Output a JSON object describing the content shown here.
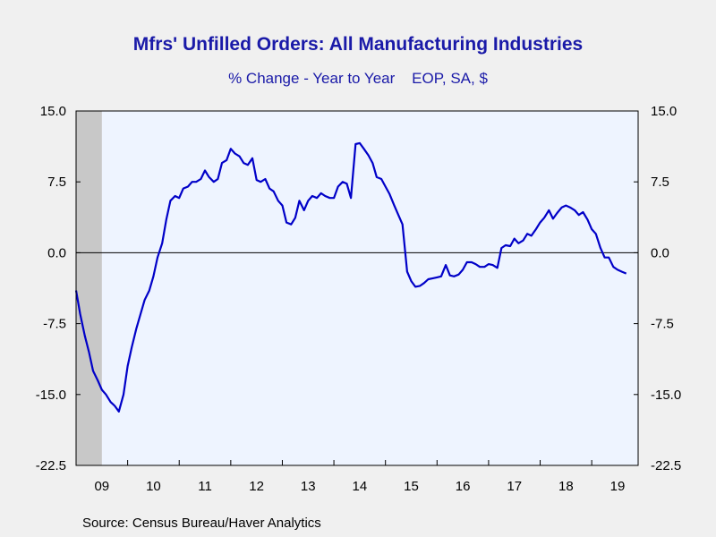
{
  "chart_data": {
    "type": "line",
    "title": "Mfrs' Unfilled Orders: All Manufacturing Industries",
    "subtitle": "% Change - Year to Year    EOP, SA, $",
    "source": "Source:  Census Bureau/Haver Analytics",
    "ylim": [
      -22.5,
      15.0
    ],
    "yticks": [
      "15.0",
      "7.5",
      "0.0",
      "-7.5",
      "-15.0",
      "-22.5"
    ],
    "xlim": [
      2009.0,
      2019.9
    ],
    "xticks": [
      "09",
      "10",
      "11",
      "12",
      "13",
      "14",
      "15",
      "16",
      "17",
      "18",
      "19"
    ],
    "recession_shade": [
      2009.0,
      2009.5
    ],
    "colors": {
      "line": "#0000c8",
      "plot_bg": "#eef4ff",
      "recession": "#c8c8c8",
      "text": "#1a1aa8"
    },
    "series": [
      {
        "x": [
          2009.0,
          2009.08,
          2009.17,
          2009.25,
          2009.33,
          2009.42,
          2009.5,
          2009.58,
          2009.67,
          2009.75,
          2009.83,
          2009.92,
          2010.0,
          2010.08,
          2010.17,
          2010.25,
          2010.33,
          2010.42,
          2010.5,
          2010.58,
          2010.67,
          2010.75,
          2010.83,
          2010.92,
          2011.0,
          2011.08,
          2011.17,
          2011.25,
          2011.33,
          2011.42,
          2011.5,
          2011.58,
          2011.67,
          2011.75,
          2011.83,
          2011.92,
          2012.0,
          2012.08,
          2012.17,
          2012.25,
          2012.33,
          2012.42,
          2012.5,
          2012.58,
          2012.67,
          2012.75,
          2012.83,
          2012.92,
          2013.0,
          2013.08,
          2013.17,
          2013.25,
          2013.33,
          2013.42,
          2013.5,
          2013.58,
          2013.67,
          2013.75,
          2013.83,
          2013.92,
          2014.0,
          2014.08,
          2014.17,
          2014.25,
          2014.33,
          2014.42,
          2014.5,
          2014.58,
          2014.67,
          2014.75,
          2014.83,
          2014.92,
          2015.0,
          2015.08,
          2015.17,
          2015.25,
          2015.33,
          2015.42,
          2015.5,
          2015.58,
          2015.67,
          2015.75,
          2015.83,
          2015.92,
          2016.0,
          2016.08,
          2016.17,
          2016.25,
          2016.33,
          2016.42,
          2016.5,
          2016.58,
          2016.67,
          2016.75,
          2016.83,
          2016.92,
          2017.0,
          2017.08,
          2017.17,
          2017.25,
          2017.33,
          2017.42,
          2017.5,
          2017.58,
          2017.67,
          2017.75,
          2017.83,
          2017.92,
          2018.0,
          2018.08,
          2018.17,
          2018.25,
          2018.33,
          2018.42,
          2018.5,
          2018.58,
          2018.67,
          2018.75,
          2018.83,
          2018.92,
          2019.0,
          2019.08,
          2019.17,
          2019.25,
          2019.33,
          2019.42,
          2019.5,
          2019.58,
          2019.67
        ],
        "values": [
          -4.0,
          -6.5,
          -8.8,
          -10.5,
          -12.5,
          -13.5,
          -14.5,
          -15.0,
          -15.8,
          -16.2,
          -16.8,
          -15.0,
          -12.0,
          -10.0,
          -8.0,
          -6.5,
          -5.0,
          -4.0,
          -2.5,
          -0.5,
          1.0,
          3.5,
          5.5,
          6.0,
          5.8,
          6.8,
          7.0,
          7.5,
          7.5,
          7.8,
          8.7,
          8.0,
          7.5,
          7.8,
          9.5,
          9.8,
          11.0,
          10.5,
          10.2,
          9.5,
          9.3,
          10.0,
          7.7,
          7.5,
          7.8,
          6.8,
          6.5,
          5.5,
          5.0,
          3.2,
          3.0,
          3.7,
          5.5,
          4.5,
          5.5,
          6.0,
          5.8,
          6.3,
          6.0,
          5.8,
          5.8,
          7.0,
          7.5,
          7.3,
          5.8,
          11.5,
          11.6,
          11.0,
          10.3,
          9.5,
          8.0,
          7.8,
          7.0,
          6.2,
          5.0,
          4.0,
          3.0,
          -2.0,
          -3.0,
          -3.6,
          -3.5,
          -3.2,
          -2.8,
          -2.7,
          -2.6,
          -2.5,
          -1.3,
          -2.4,
          -2.5,
          -2.3,
          -1.8,
          -1.0,
          -1.0,
          -1.2,
          -1.5,
          -1.5,
          -1.2,
          -1.3,
          -1.6,
          0.5,
          0.8,
          0.7,
          1.5,
          1.0,
          1.3,
          2.0,
          1.8,
          2.5,
          3.2,
          3.7,
          4.5,
          3.6,
          4.2,
          4.8,
          5.0,
          4.8,
          4.5,
          4.0,
          4.3,
          3.5,
          2.5,
          2.0,
          0.5,
          -0.5,
          -0.5,
          -1.5,
          -1.8,
          -2.0,
          -2.2
        ]
      }
    ]
  }
}
